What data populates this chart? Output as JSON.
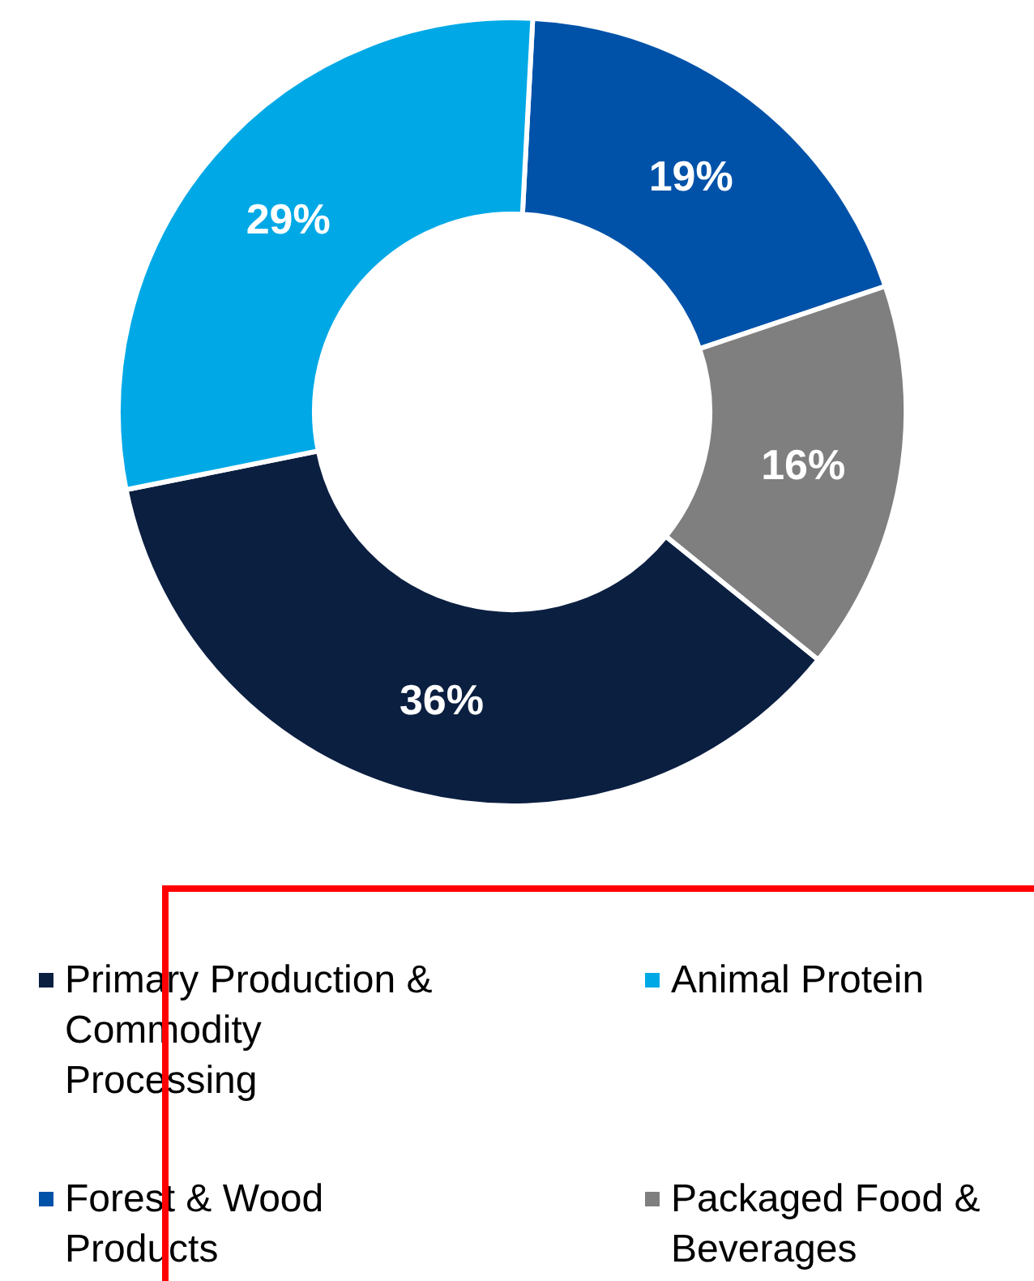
{
  "chart_data": {
    "type": "donut",
    "categories": [
      "Forest & Wood Products",
      "Packaged Food & Beverages",
      "Primary Production & Commodity Processing",
      "Animal Protein"
    ],
    "values": [
      19,
      16,
      36,
      29
    ],
    "colors": [
      "#0052a9",
      "#7f7f7f",
      "#0b1f41",
      "#00a9e6"
    ],
    "value_labels": [
      "19%",
      "16%",
      "36%",
      "29%"
    ],
    "legend": "bottom"
  }
}
